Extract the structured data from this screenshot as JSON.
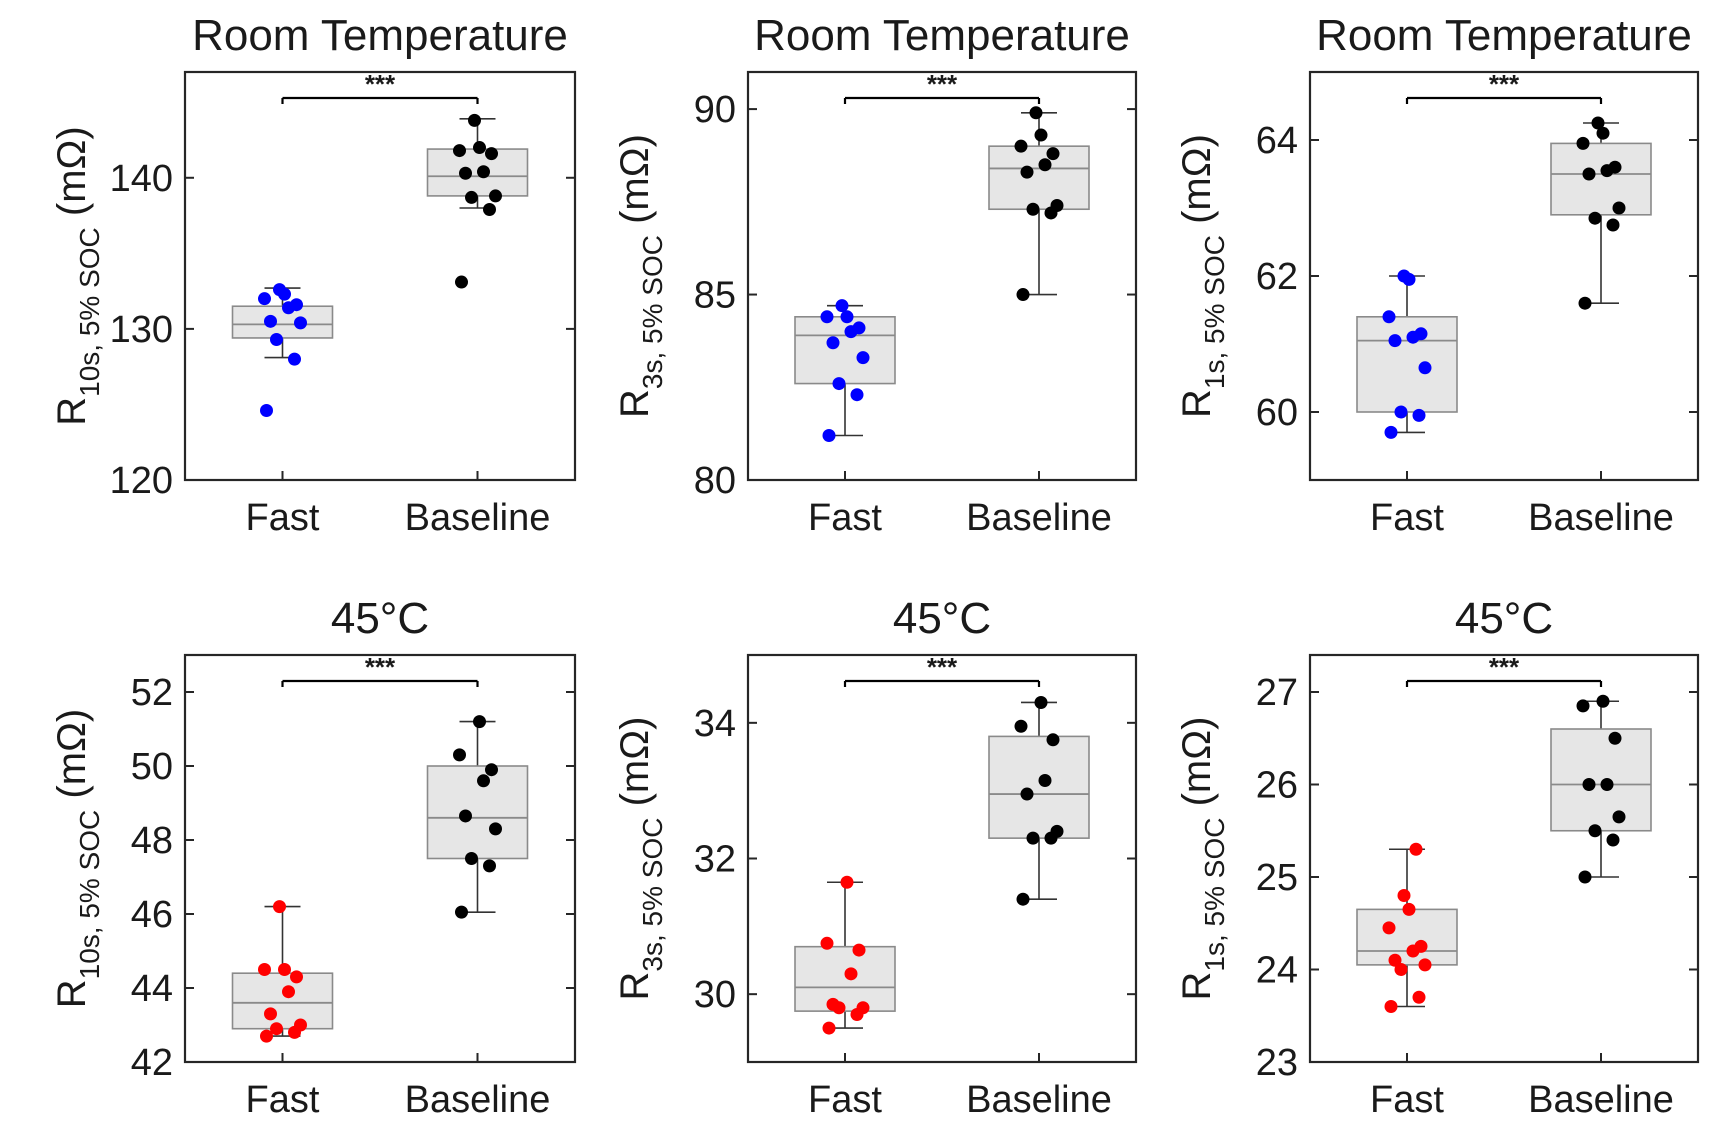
{
  "chart_data": [
    {
      "type": "box",
      "title": "Room Temperature",
      "ylabel": {
        "base": "R",
        "sub": "10s, 5% SOC",
        "unit": " (mΩ)"
      },
      "categories": [
        "Fast",
        "Baseline"
      ],
      "ylim": [
        120,
        147
      ],
      "yticks": [
        120,
        130,
        140
      ],
      "significance": "***",
      "series": [
        {
          "name": "Fast",
          "color": "#0000ff",
          "box": {
            "min": 128.1,
            "q1": 129.4,
            "median": 130.3,
            "q3": 131.5,
            "max": 132.7
          },
          "points": [
            124.6,
            128.0,
            129.3,
            130.4,
            130.5,
            131.4,
            131.6,
            132.0,
            132.3,
            132.6
          ]
        },
        {
          "name": "Baseline",
          "color": "#000000",
          "box": {
            "min": 138.0,
            "q1": 138.8,
            "median": 140.1,
            "q3": 141.9,
            "max": 143.9
          },
          "points": [
            133.1,
            137.9,
            138.7,
            138.8,
            140.3,
            140.4,
            141.6,
            141.8,
            142.0,
            143.8
          ]
        }
      ]
    },
    {
      "type": "box",
      "title": "Room Temperature",
      "ylabel": {
        "base": "R",
        "sub": "3s, 5% SOC",
        "unit": " (mΩ)"
      },
      "categories": [
        "Fast",
        "Baseline"
      ],
      "ylim": [
        80,
        91
      ],
      "yticks": [
        80,
        85,
        90
      ],
      "significance": "***",
      "series": [
        {
          "name": "Fast",
          "color": "#0000ff",
          "box": {
            "min": 81.2,
            "q1": 82.6,
            "median": 83.9,
            "q3": 84.4,
            "max": 84.7
          },
          "points": [
            81.2,
            82.3,
            82.6,
            83.3,
            83.7,
            84.0,
            84.1,
            84.4,
            84.4,
            84.7
          ]
        },
        {
          "name": "Baseline",
          "color": "#000000",
          "box": {
            "min": 85.0,
            "q1": 87.3,
            "median": 88.4,
            "q3": 89.0,
            "max": 89.9
          },
          "points": [
            85.0,
            87.2,
            87.3,
            87.4,
            88.3,
            88.5,
            88.8,
            89.0,
            89.3,
            89.9
          ]
        }
      ]
    },
    {
      "type": "box",
      "title": "Room Temperature",
      "ylabel": {
        "base": "R",
        "sub": "1s, 5% SOC",
        "unit": " (mΩ)"
      },
      "categories": [
        "Fast",
        "Baseline"
      ],
      "ylim": [
        59,
        65
      ],
      "yticks": [
        60,
        62,
        64
      ],
      "significance": "***",
      "series": [
        {
          "name": "Fast",
          "color": "#0000ff",
          "box": {
            "min": 59.7,
            "q1": 60.0,
            "median": 61.05,
            "q3": 61.4,
            "max": 62.0
          },
          "points": [
            59.7,
            59.95,
            60.0,
            60.65,
            61.05,
            61.1,
            61.15,
            61.4,
            61.95,
            62.0
          ]
        },
        {
          "name": "Baseline",
          "color": "#000000",
          "box": {
            "min": 61.6,
            "q1": 62.9,
            "median": 63.5,
            "q3": 63.95,
            "max": 64.25
          },
          "points": [
            61.6,
            62.75,
            62.85,
            63.0,
            63.5,
            63.55,
            63.6,
            63.95,
            64.1,
            64.25
          ]
        }
      ]
    },
    {
      "type": "box",
      "title": "45°C",
      "ylabel": {
        "base": "R",
        "sub": "10s, 5% SOC",
        "unit": " (mΩ)"
      },
      "categories": [
        "Fast",
        "Baseline"
      ],
      "ylim": [
        42,
        53
      ],
      "yticks": [
        42,
        44,
        46,
        48,
        50,
        52
      ],
      "significance": "***",
      "series": [
        {
          "name": "Fast",
          "color": "#ff0000",
          "box": {
            "min": 42.7,
            "q1": 42.9,
            "median": 43.6,
            "q3": 44.4,
            "max": 46.2
          },
          "points": [
            42.7,
            42.8,
            42.9,
            43.0,
            43.3,
            43.9,
            44.3,
            44.5,
            44.5,
            46.2
          ]
        },
        {
          "name": "Baseline",
          "color": "#000000",
          "box": {
            "min": 46.05,
            "q1": 47.5,
            "median": 48.6,
            "q3": 50.0,
            "max": 51.2
          },
          "points": [
            46.05,
            47.3,
            47.5,
            48.3,
            48.65,
            49.6,
            49.9,
            50.3,
            51.2
          ]
        }
      ]
    },
    {
      "type": "box",
      "title": "45°C",
      "ylabel": {
        "base": "R",
        "sub": "3s, 5% SOC",
        "unit": " (mΩ)"
      },
      "categories": [
        "Fast",
        "Baseline"
      ],
      "ylim": [
        29,
        35
      ],
      "yticks": [
        30,
        32,
        34
      ],
      "significance": "***",
      "series": [
        {
          "name": "Fast",
          "color": "#ff0000",
          "box": {
            "min": 29.5,
            "q1": 29.75,
            "median": 30.1,
            "q3": 30.7,
            "max": 31.65
          },
          "points": [
            29.5,
            29.7,
            29.8,
            29.8,
            29.85,
            30.3,
            30.65,
            30.75,
            31.65
          ]
        },
        {
          "name": "Baseline",
          "color": "#000000",
          "box": {
            "min": 31.4,
            "q1": 32.3,
            "median": 32.95,
            "q3": 33.8,
            "max": 34.3
          },
          "points": [
            31.4,
            32.3,
            32.3,
            32.4,
            32.95,
            33.15,
            33.75,
            33.95,
            34.3
          ]
        }
      ]
    },
    {
      "type": "box",
      "title": "45°C",
      "ylabel": {
        "base": "R",
        "sub": "1s, 5% SOC",
        "unit": " (mΩ)"
      },
      "categories": [
        "Fast",
        "Baseline"
      ],
      "ylim": [
        23,
        27.4
      ],
      "yticks": [
        23,
        24,
        25,
        26,
        27
      ],
      "significance": "***",
      "series": [
        {
          "name": "Fast",
          "color": "#ff0000",
          "box": {
            "min": 23.6,
            "q1": 24.05,
            "median": 24.2,
            "q3": 24.65,
            "max": 25.3
          },
          "points": [
            23.6,
            23.7,
            24.0,
            24.05,
            24.1,
            24.2,
            24.25,
            24.45,
            24.65,
            24.8,
            25.3
          ]
        },
        {
          "name": "Baseline",
          "color": "#000000",
          "box": {
            "min": 25.0,
            "q1": 25.5,
            "median": 26.0,
            "q3": 26.6,
            "max": 26.9
          },
          "points": [
            25.0,
            25.4,
            25.5,
            25.65,
            26.0,
            26.0,
            26.5,
            26.85,
            26.9
          ]
        }
      ]
    }
  ]
}
